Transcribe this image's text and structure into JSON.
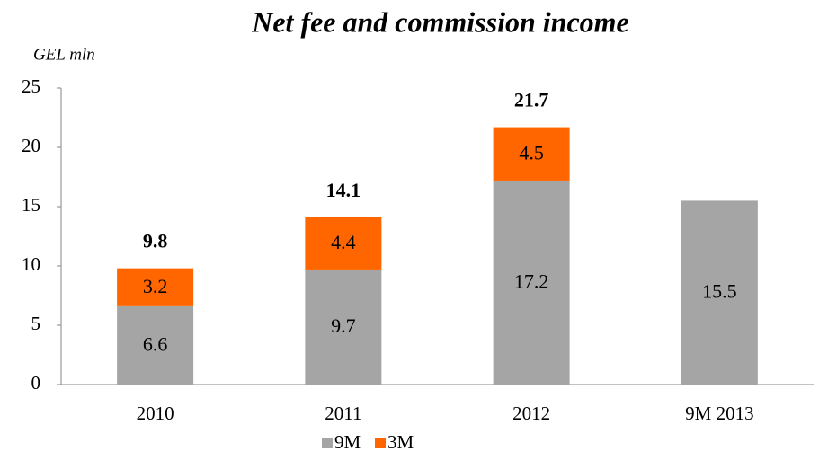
{
  "chart_data": {
    "type": "stacked_bar",
    "title": "Net fee and commission income",
    "y_label": "GEL mln",
    "categories": [
      "2010",
      "2011",
      "2012",
      "9M 2013"
    ],
    "series": [
      {
        "name": "9M",
        "color": "#a5a5a5",
        "values": [
          6.6,
          9.7,
          17.2,
          15.5
        ]
      },
      {
        "name": "3M",
        "color": "#ff6600",
        "values": [
          3.2,
          4.4,
          4.5,
          null
        ]
      }
    ],
    "totals": [
      9.8,
      14.1,
      21.7,
      null
    ],
    "ylim": [
      0,
      25
    ],
    "yticks": [
      0,
      5,
      10,
      15,
      20,
      25
    ],
    "grid": false,
    "legend": "bottom"
  }
}
